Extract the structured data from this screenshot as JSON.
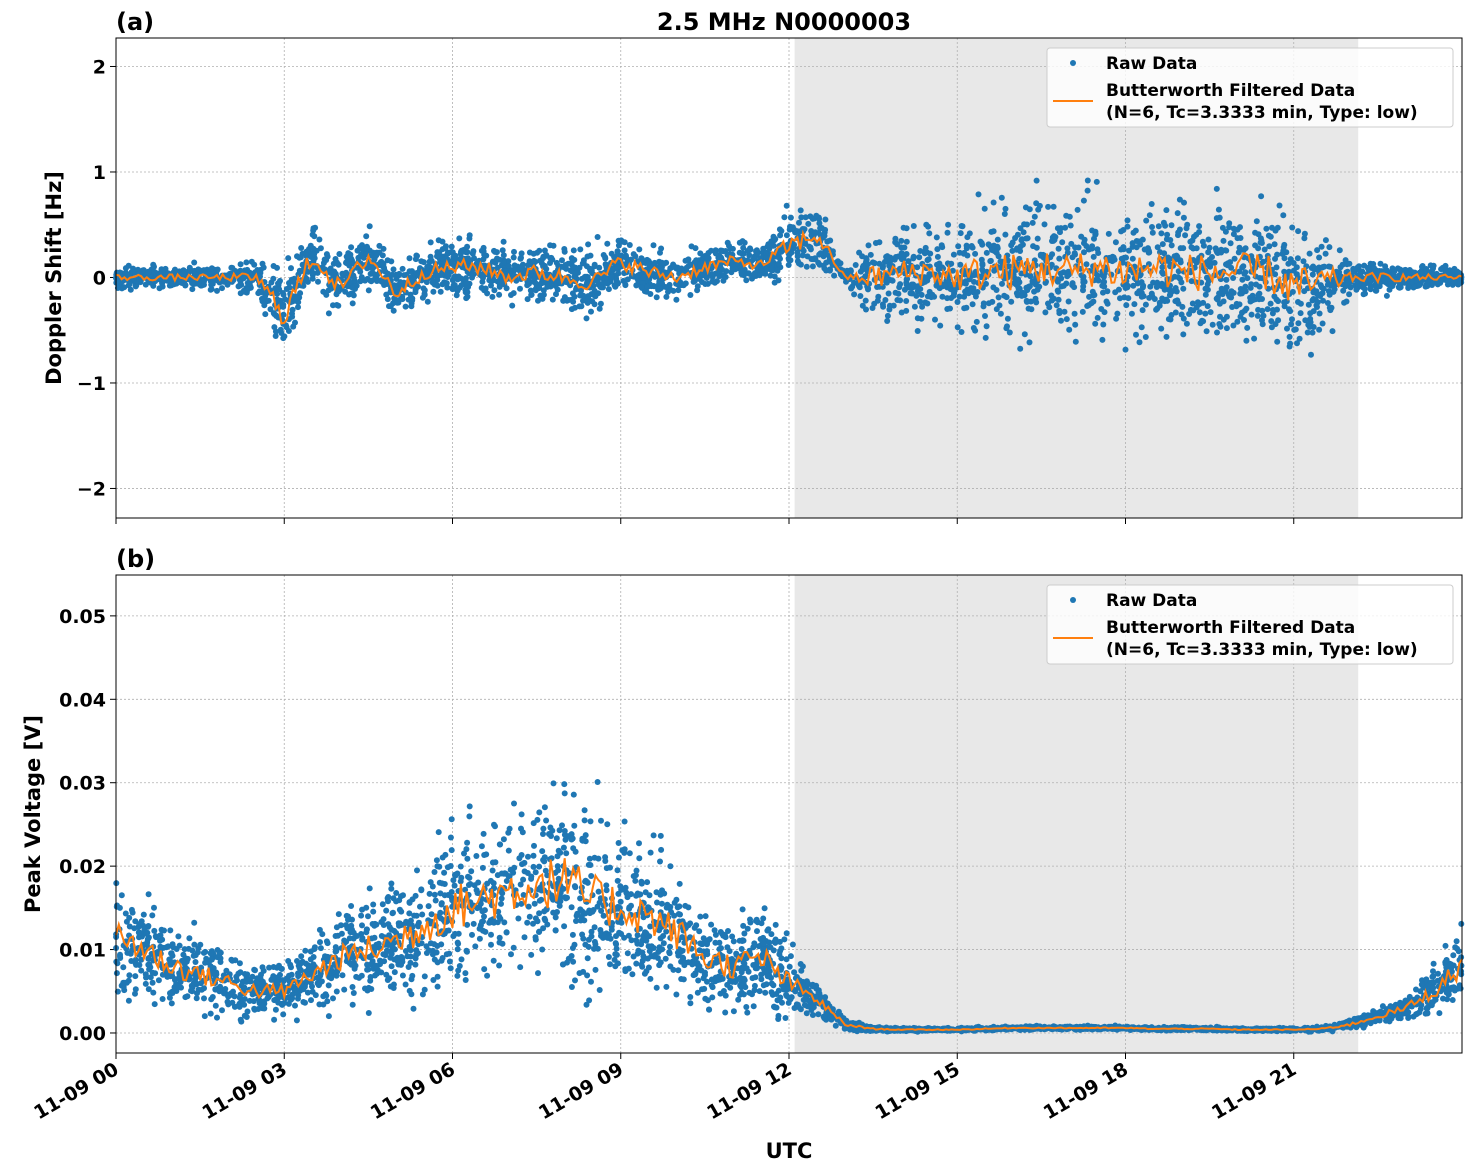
{
  "chart_data": [
    {
      "type": "scatter",
      "panel_label": "(a)",
      "title": "2.5 MHz N0000003",
      "xlabel": "",
      "ylabel": "Doppler Shift [Hz]",
      "xlim_hours": [
        0,
        24
      ],
      "ylim": [
        -2.28,
        2.27
      ],
      "yticks": [
        2,
        1,
        0,
        -1,
        -2
      ],
      "ytick_labels": [
        "2",
        "1",
        "0",
        "−1",
        "−2"
      ],
      "shaded_hours": [
        12.1,
        22.15
      ],
      "grid": true,
      "legend_position": "top-right",
      "legend": [
        "Raw Data",
        "Butterworth Filtered Data",
        "(N=6, Tc=3.3333 min, Type: low)"
      ],
      "x_half_hours": [
        0,
        0.5,
        1,
        1.5,
        2,
        2.5,
        3,
        3.5,
        4,
        4.5,
        5,
        5.5,
        6,
        6.5,
        7,
        7.5,
        8,
        8.5,
        9,
        9.5,
        10,
        10.5,
        11,
        11.5,
        12,
        12.5,
        13,
        13.5,
        14,
        14.5,
        15,
        15.5,
        16,
        16.5,
        17,
        17.5,
        18,
        18.5,
        19,
        19.5,
        20,
        20.5,
        21,
        21.5,
        22,
        22.5,
        23,
        23.5,
        24
      ],
      "filtered": [
        0,
        0,
        0,
        0,
        0,
        0,
        -0.35,
        0.2,
        -0.1,
        0.2,
        -0.15,
        0.05,
        0.1,
        0.1,
        0,
        0.05,
        0,
        -0.05,
        0.15,
        0.05,
        0,
        0.1,
        0.15,
        0.12,
        0.3,
        0.4,
        0,
        0,
        0.05,
        0.05,
        0,
        0.05,
        0.05,
        0.1,
        0.05,
        0.1,
        0.05,
        0.1,
        0.05,
        0.05,
        0.05,
        0.05,
        -0.1,
        -0.05,
        0,
        0,
        0,
        0,
        0
      ],
      "raw_spread": [
        0.1,
        0.1,
        0.1,
        0.1,
        0.12,
        0.15,
        0.45,
        0.3,
        0.25,
        0.25,
        0.25,
        0.22,
        0.25,
        0.25,
        0.22,
        0.25,
        0.25,
        0.28,
        0.25,
        0.22,
        0.2,
        0.2,
        0.18,
        0.15,
        0.3,
        0.3,
        0.05,
        0.4,
        0.4,
        0.45,
        0.45,
        0.6,
        0.6,
        0.6,
        0.6,
        0.6,
        0.6,
        0.6,
        0.6,
        0.6,
        0.6,
        0.6,
        0.65,
        0.55,
        0.15,
        0.15,
        0.12,
        0.1,
        0.1
      ]
    },
    {
      "type": "scatter",
      "panel_label": "(b)",
      "xlabel": "UTC",
      "ylabel": "Peak Voltage [V]",
      "xlim_hours": [
        0,
        24
      ],
      "ylim": [
        -0.0024,
        0.0549
      ],
      "yticks": [
        0.05,
        0.04,
        0.03,
        0.02,
        0.01,
        0.0
      ],
      "ytick_labels": [
        "0.05",
        "0.04",
        "0.03",
        "0.02",
        "0.01",
        "0.00"
      ],
      "xtick_labels": [
        "11-09 00",
        "11-09 03",
        "11-09 06",
        "11-09 09",
        "11-09 12",
        "11-09 15",
        "11-09 18",
        "11-09 21"
      ],
      "shaded_hours": [
        12.1,
        22.15
      ],
      "grid": true,
      "legend_position": "top-right",
      "legend": [
        "Raw Data",
        "Butterworth Filtered Data",
        "(N=6, Tc=3.3333 min, Type: low)"
      ],
      "x_half_hours": [
        0,
        0.5,
        1,
        1.5,
        2,
        2.5,
        3,
        3.5,
        4,
        4.5,
        5,
        5.5,
        6,
        6.5,
        7,
        7.5,
        8,
        8.5,
        9,
        9.5,
        10,
        10.5,
        11,
        11.5,
        12,
        12.5,
        13,
        13.5,
        14,
        14.5,
        15,
        15.5,
        16,
        16.5,
        17,
        17.5,
        18,
        18.5,
        19,
        19.5,
        20,
        20.5,
        21,
        21.5,
        22,
        22.5,
        23,
        23.5,
        24
      ],
      "filtered": [
        0.012,
        0.01,
        0.008,
        0.007,
        0.006,
        0.005,
        0.005,
        0.007,
        0.009,
        0.01,
        0.011,
        0.013,
        0.015,
        0.016,
        0.017,
        0.018,
        0.018,
        0.016,
        0.015,
        0.014,
        0.012,
        0.009,
        0.008,
        0.009,
        0.006,
        0.004,
        0.001,
        0.0005,
        0.0004,
        0.0004,
        0.0004,
        0.0005,
        0.0006,
        0.0006,
        0.0006,
        0.0006,
        0.0006,
        0.0005,
        0.0005,
        0.0005,
        0.0004,
        0.0004,
        0.0004,
        0.0005,
        0.001,
        0.002,
        0.003,
        0.005,
        0.008
      ],
      "raw_spread": [
        0.007,
        0.006,
        0.005,
        0.004,
        0.004,
        0.003,
        0.003,
        0.004,
        0.005,
        0.006,
        0.007,
        0.008,
        0.009,
        0.01,
        0.01,
        0.01,
        0.011,
        0.01,
        0.009,
        0.008,
        0.007,
        0.006,
        0.005,
        0.006,
        0.004,
        0.002,
        0.0006,
        0.0003,
        0.0002,
        0.0002,
        0.0002,
        0.0002,
        0.0002,
        0.0002,
        0.0002,
        0.0002,
        0.0002,
        0.0002,
        0.0002,
        0.0002,
        0.0002,
        0.0002,
        0.0002,
        0.0003,
        0.0006,
        0.001,
        0.0015,
        0.003,
        0.005
      ]
    }
  ],
  "colors": {
    "raw": "#1f77b4",
    "filtered": "#ff7f0e",
    "shade": "#e8e8e8"
  }
}
